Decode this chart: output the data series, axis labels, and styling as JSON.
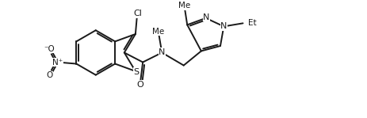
{
  "bg_color": "#ffffff",
  "line_color": "#1a1a1a",
  "line_width": 1.4,
  "figsize": [
    4.63,
    1.49
  ],
  "dpi": 100,
  "xlim": [
    0,
    9.5
  ],
  "ylim": [
    -0.5,
    3.2
  ]
}
